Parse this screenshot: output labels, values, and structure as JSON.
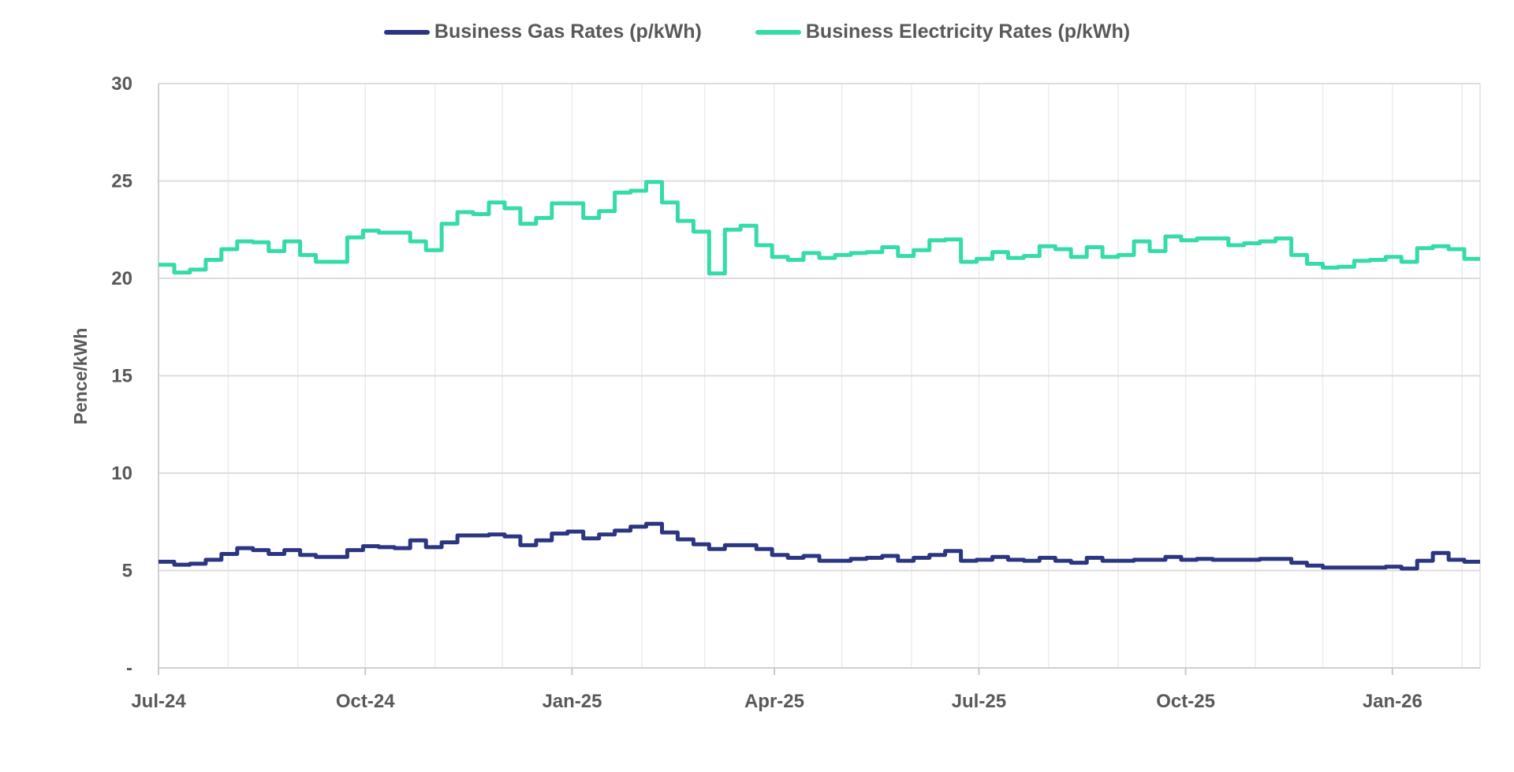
{
  "chart_data": {
    "type": "line",
    "title": "",
    "xlabel": "",
    "ylabel": "Pence/kWh",
    "ylim": [
      0,
      30
    ],
    "yticks": [
      0,
      5,
      10,
      15,
      20,
      25,
      30
    ],
    "ytick_labels": [
      "-",
      "5",
      "10",
      "15",
      "20",
      "25",
      "30"
    ],
    "xticks": [
      "2024-07-01",
      "2024-10-01",
      "2025-01-01",
      "2025-04-01",
      "2025-07-01",
      "2025-10-01",
      "2026-01-01"
    ],
    "xtick_labels": [
      "Jul-24",
      "Oct-24",
      "Jan-25",
      "Apr-25",
      "Jul-25",
      "Oct-25",
      "Jan-26"
    ],
    "x_start": "2024-07-01",
    "x_frequency": "weekly",
    "step": true,
    "grid": true,
    "legend_position": "top",
    "series": [
      {
        "name": "Business Gas Rates (p/kWh)",
        "color": "#2b3580",
        "values": [
          5.45,
          5.3,
          5.35,
          5.55,
          5.85,
          6.15,
          6.05,
          5.85,
          6.05,
          5.8,
          5.7,
          5.7,
          6.05,
          6.25,
          6.2,
          6.15,
          6.55,
          6.2,
          6.45,
          6.8,
          6.8,
          6.85,
          6.75,
          6.3,
          6.55,
          6.9,
          7.0,
          6.65,
          6.85,
          7.05,
          7.25,
          7.4,
          6.95,
          6.6,
          6.35,
          6.1,
          6.3,
          6.3,
          6.1,
          5.8,
          5.65,
          5.75,
          5.5,
          5.5,
          5.6,
          5.65,
          5.75,
          5.5,
          5.65,
          5.8,
          6.0,
          5.5,
          5.55,
          5.7,
          5.55,
          5.5,
          5.65,
          5.5,
          5.4,
          5.65,
          5.5,
          5.5,
          5.55,
          5.55,
          5.7,
          5.55,
          5.6,
          5.55,
          5.55,
          5.55,
          5.6,
          5.6,
          5.4,
          5.25,
          5.15,
          5.15,
          5.15,
          5.15,
          5.2,
          5.1,
          5.5,
          5.9,
          5.55,
          5.45
        ]
      },
      {
        "name": "Business Electricity Rates (p/kWh)",
        "color": "#35dba8",
        "values": [
          20.7,
          20.3,
          20.45,
          20.95,
          21.5,
          21.9,
          21.85,
          21.4,
          21.9,
          21.2,
          20.85,
          20.85,
          22.1,
          22.45,
          22.35,
          22.35,
          21.9,
          21.45,
          22.8,
          23.4,
          23.3,
          23.9,
          23.6,
          22.8,
          23.1,
          23.85,
          23.85,
          23.1,
          23.45,
          24.4,
          24.5,
          24.95,
          23.9,
          22.95,
          22.4,
          20.25,
          22.5,
          22.7,
          21.7,
          21.1,
          20.95,
          21.3,
          21.05,
          21.2,
          21.3,
          21.35,
          21.6,
          21.15,
          21.45,
          21.95,
          22.0,
          20.85,
          21.0,
          21.35,
          21.05,
          21.15,
          21.65,
          21.5,
          21.1,
          21.6,
          21.1,
          21.2,
          21.9,
          21.4,
          22.15,
          21.95,
          22.05,
          22.05,
          21.7,
          21.8,
          21.9,
          22.05,
          21.2,
          20.75,
          20.55,
          20.6,
          20.9,
          20.95,
          21.1,
          20.85,
          21.55,
          21.65,
          21.5,
          21.0
        ]
      }
    ]
  }
}
